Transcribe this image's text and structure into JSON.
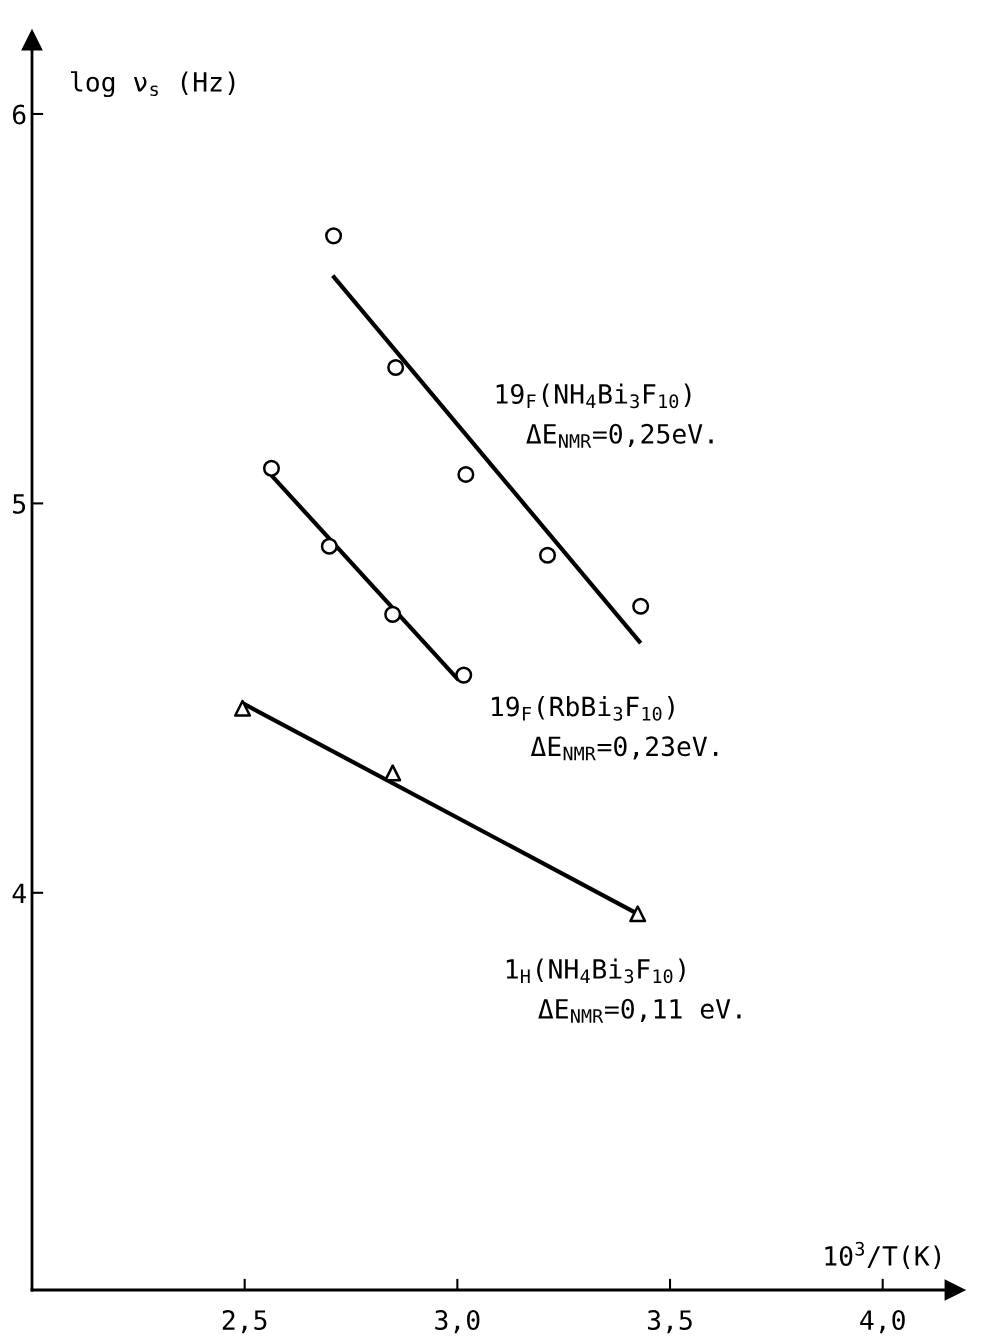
{
  "chart_data": {
    "type": "scatter",
    "xlabel": "10$^{3}$/T(K)",
    "ylabel": "log ν$_{s}$ (Hz)",
    "xlim": [
      2.0,
      4.17
    ],
    "ylim": [
      2.98,
      6.19
    ],
    "xticks": [
      {
        "value": 2.5,
        "label": "2,5"
      },
      {
        "value": 3.0,
        "label": "3,0"
      },
      {
        "value": 3.5,
        "label": "3,5"
      },
      {
        "value": 4.0,
        "label": "4,0"
      }
    ],
    "yticks": [
      4,
      5,
      6
    ],
    "grid": false,
    "series": [
      {
        "marker": "circle",
        "color": "#000000",
        "x": [
          2.709,
          2.855,
          3.02,
          3.212,
          3.431
        ],
        "values": [
          5.687,
          5.349,
          5.074,
          4.867,
          4.736
        ]
      },
      {
        "type": "line",
        "marker": "none",
        "color": "#000000",
        "x": [
          2.707,
          3.431
        ],
        "values": [
          5.585,
          4.641
        ]
      },
      {
        "marker": "circle",
        "color": "#000000",
        "x": [
          2.563,
          2.699,
          2.848,
          3.015
        ],
        "values": [
          5.09,
          4.89,
          4.715,
          4.559
        ]
      },
      {
        "type": "line",
        "marker": "none",
        "color": "#000000",
        "x": [
          2.563,
          3.003
        ],
        "values": [
          5.072,
          4.546
        ]
      },
      {
        "marker": "triangle",
        "color": "#000000",
        "x": [
          2.495,
          2.848,
          3.424
        ],
        "values": [
          4.474,
          4.308,
          3.946
        ]
      },
      {
        "type": "line",
        "marker": "none",
        "color": "#000000",
        "x": [
          2.495,
          3.424
        ],
        "values": [
          4.487,
          3.946
        ]
      }
    ],
    "annotations": [
      "19$_{F}$(NH$_{4}$Bi$_{3}$F$_{10}$)",
      "ΔE$_{NMR}$=0,25eV.",
      "19$_{F}$(RbBi$_{3}$F$_{10}$)",
      "ΔE$_{NMR}$=0,23eV.",
      "1$_{H}$(NH$_{4}$Bi$_{3}$F$_{10}$)",
      "ΔE$_{NMR}$=0,11 eV."
    ]
  }
}
